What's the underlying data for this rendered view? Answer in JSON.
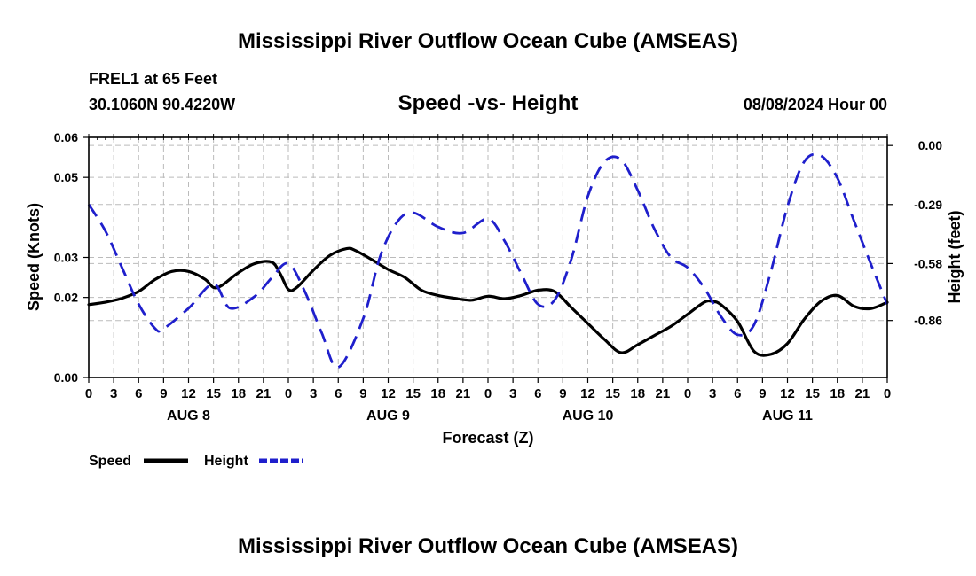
{
  "title": "Mississippi River Outflow Ocean Cube (AMSEAS)",
  "station_line": "FREL1 at 65 Feet",
  "coords_line": "30.1060N  90.4220W",
  "subtitle": "Speed -vs- Height",
  "date_line": "08/08/2024 Hour 00",
  "footer_title": "Mississippi River Outflow Ocean Cube (AMSEAS)",
  "colors": {
    "speed": "#000000",
    "height": "#1f1fcc",
    "grid": "#bbbbbb"
  },
  "chart_data": {
    "type": "line",
    "xlabel": "Forecast (Z)",
    "ylabel_left": "Speed (Knots)",
    "ylabel_right": "Height (feet)",
    "x_hours_range": [
      0,
      96
    ],
    "x_tick_labels": [
      "0",
      "3",
      "6",
      "9",
      "12",
      "15",
      "18",
      "21",
      "0",
      "3",
      "6",
      "9",
      "12",
      "15",
      "18",
      "21",
      "0",
      "3",
      "6",
      "9",
      "12",
      "15",
      "18",
      "21",
      "0",
      "3",
      "6",
      "9",
      "12",
      "15",
      "18",
      "21",
      "0"
    ],
    "day_labels": [
      {
        "label": "AUG 8",
        "hour": 12
      },
      {
        "label": "AUG 9",
        "hour": 36
      },
      {
        "label": "AUG 10",
        "hour": 60
      },
      {
        "label": "AUG 11",
        "hour": 84
      }
    ],
    "left_axis": {
      "range": [
        0,
        0.06
      ],
      "ticks": [
        "0.00",
        "0.02",
        "0.03",
        "0.05",
        "0.06"
      ],
      "tick_values": [
        0,
        0.02,
        0.03,
        0.05,
        0.06
      ]
    },
    "right_axis": {
      "range": [
        -1.14,
        0.04
      ],
      "ticks": [
        "0.00",
        "-0.29",
        "-0.58",
        "-0.86"
      ],
      "tick_values": [
        0.0,
        -0.29,
        -0.58,
        -0.86
      ]
    },
    "series": [
      {
        "name": "Speed",
        "axis": "left",
        "style": "solid",
        "x": [
          0,
          2,
          4,
          6,
          8,
          10,
          12,
          14,
          15,
          16,
          18,
          20,
          22,
          23,
          24,
          25,
          27,
          29,
          31,
          32,
          34,
          36,
          38,
          40,
          42,
          44,
          46,
          48,
          50,
          52,
          54,
          56,
          58,
          60,
          62,
          64,
          66,
          68,
          70,
          72,
          74,
          75,
          76,
          78,
          80,
          82,
          84,
          86,
          88,
          90,
          92,
          94,
          96
        ],
        "y": [
          0.0182,
          0.0188,
          0.0198,
          0.0215,
          0.0245,
          0.0265,
          0.0265,
          0.0245,
          0.0225,
          0.023,
          0.0262,
          0.0285,
          0.0288,
          0.026,
          0.022,
          0.0225,
          0.0268,
          0.0305,
          0.0322,
          0.0318,
          0.0295,
          0.027,
          0.025,
          0.0218,
          0.0205,
          0.0198,
          0.0193,
          0.0203,
          0.0197,
          0.0205,
          0.0218,
          0.0215,
          0.0175,
          0.0135,
          0.0095,
          0.0062,
          0.0082,
          0.0105,
          0.0128,
          0.0158,
          0.0188,
          0.019,
          0.0182,
          0.014,
          0.0065,
          0.0058,
          0.0085,
          0.0145,
          0.019,
          0.0205,
          0.0178,
          0.0172,
          0.0188
        ]
      },
      {
        "name": "Height",
        "axis": "right",
        "style": "dashed",
        "x": [
          0,
          2,
          4,
          6,
          8,
          9,
          12,
          15,
          17,
          20,
          22,
          24,
          26,
          28,
          30,
          33,
          35,
          37,
          39,
          42,
          45,
          48,
          50,
          52,
          54,
          56,
          58,
          60,
          62,
          64,
          66,
          68,
          70,
          72,
          74,
          76,
          78,
          80,
          82,
          84,
          86,
          88,
          90,
          92,
          94,
          96
        ],
        "y": [
          -0.29,
          -0.42,
          -0.6,
          -0.78,
          -0.9,
          -0.9,
          -0.8,
          -0.68,
          -0.8,
          -0.74,
          -0.65,
          -0.58,
          -0.72,
          -0.92,
          -1.09,
          -0.85,
          -0.55,
          -0.38,
          -0.33,
          -0.4,
          -0.43,
          -0.36,
          -0.47,
          -0.63,
          -0.78,
          -0.76,
          -0.56,
          -0.25,
          -0.08,
          -0.07,
          -0.22,
          -0.41,
          -0.55,
          -0.6,
          -0.7,
          -0.84,
          -0.93,
          -0.88,
          -0.62,
          -0.3,
          -0.08,
          -0.05,
          -0.16,
          -0.37,
          -0.58,
          -0.78
        ]
      }
    ],
    "legend": [
      {
        "label": "Speed",
        "style": "solid"
      },
      {
        "label": "Height",
        "style": "dashed"
      }
    ]
  }
}
